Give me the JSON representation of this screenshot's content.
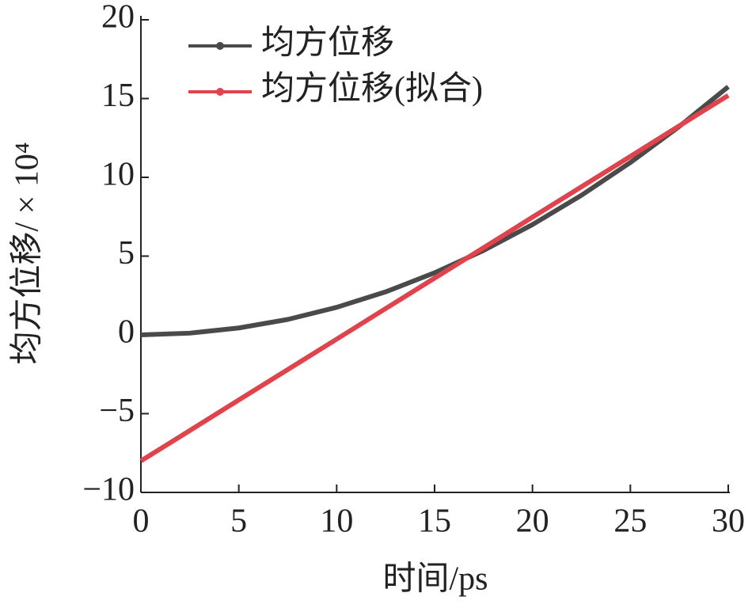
{
  "chart_data": {
    "type": "line",
    "x_label": "时间/ps",
    "y_label": "均方位移/ × 10⁴",
    "x": [
      0,
      2.5,
      5,
      7.5,
      10,
      12.5,
      15,
      17.5,
      20,
      22.5,
      25,
      27.5,
      30
    ],
    "series": [
      {
        "name": "均方位移",
        "color": "#4a4a4a",
        "values": [
          0,
          0.11,
          0.44,
          0.98,
          1.75,
          2.73,
          3.94,
          5.36,
          7.0,
          8.86,
          10.94,
          13.23,
          15.75
        ]
      },
      {
        "name": "均方位移(拟合)",
        "color": "#e0434b",
        "values": [
          -8,
          -6.07,
          -4.13,
          -2.2,
          -0.27,
          1.67,
          3.6,
          5.53,
          7.47,
          9.4,
          11.33,
          13.27,
          15.2
        ]
      }
    ],
    "xlim": [
      0,
      30
    ],
    "xticks": [
      0,
      5,
      10,
      15,
      20,
      25,
      30
    ],
    "ylim": [
      -10,
      20
    ],
    "yticks": [
      {
        "value": -10,
        "label": "−10"
      },
      {
        "value": -5,
        "label": "−5"
      },
      0,
      5,
      10,
      15,
      20
    ],
    "legend": "upper left"
  }
}
